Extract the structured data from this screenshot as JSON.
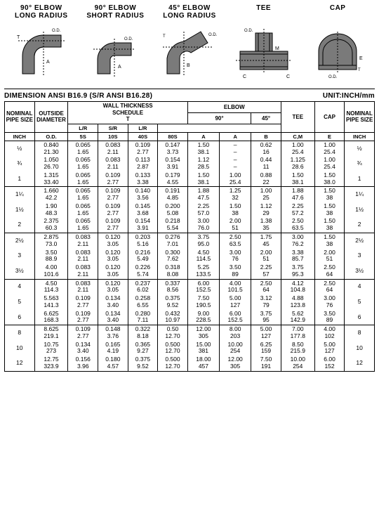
{
  "diagram_titles": [
    "90° ELBOW\nLONG RADIUS",
    "90° ELBOW\nSHORT RADIUS",
    "45° ELBOW\nLONG RADIUS",
    "TEE",
    "CAP"
  ],
  "standard": "DIMENSION ANSI B16.9 (S/R ANSI B16.28)",
  "unit": "UNIT:INCH/mm",
  "colors": {
    "fill": "#7a7a7a",
    "stroke": "#000",
    "bg": "#fff"
  },
  "header": {
    "nominal": "NOMINAL\nPIPE SIZE",
    "od": "OUTSIDE\nDIAMETER",
    "wall": "WALL THICKNESS\nSCHEDULE\nT",
    "elbow": "ELBOW",
    "e90": "90°",
    "e45": "45°",
    "tee": "TEE",
    "cap": "CAP",
    "lr": "L/R",
    "sr": "S/R",
    "inch": "INCH",
    "odc": "O.D.",
    "s5": "5S",
    "s10": "10S",
    "s40": "40S",
    "s80": "80S",
    "a": "A",
    "b": "B",
    "cm": "C,M",
    "e": "E"
  },
  "groups": [
    [
      [
        "½",
        "0.840\n21.30",
        "0.065\n1.65",
        "0.083\n2.11",
        "0.109\n2.77",
        "0.147\n3.73",
        "1.50\n38.1",
        "–\n–",
        "0.62\n16",
        "1.00\n25.4",
        "1.00\n25.4",
        "½"
      ],
      [
        "¾",
        "1.050\n26.70",
        "0.065\n1.65",
        "0.083\n2.11",
        "0.113\n2.87",
        "0.154\n3.91",
        "1.12\n28.5",
        "–\n–",
        "0.44\n11",
        "1.125\n28.6",
        "1.00\n25.4",
        "¾"
      ],
      [
        "1",
        "1.315\n33.40",
        "0.065\n1.65",
        "0.109\n2.77",
        "0.133\n3.38",
        "0.179\n4.55",
        "1.50\n38.1",
        "1.00\n25.4",
        "0.88\n22",
        "1.50\n38.1",
        "1.50\n38.0",
        "1"
      ]
    ],
    [
      [
        "1¼",
        "1.660\n42.2",
        "0.065\n1.65",
        "0.109\n2.77",
        "0.140\n3.56",
        "0.191\n4.85",
        "1.88\n47.5",
        "1.25\n32",
        "1.00\n25",
        "1.88\n47.6",
        "1.50\n38",
        "1¼"
      ],
      [
        "1½",
        "1.90\n48.3",
        "0.065\n1.65",
        "0.109\n2.77",
        "0.145\n3.68",
        "0.200\n5.08",
        "2.25\n57.0",
        "1.50\n38",
        "1.12\n29",
        "2.25\n57.2",
        "1.50\n38",
        "1½"
      ],
      [
        "2",
        "2.375\n60.3",
        "0.065\n1.65",
        "0.109\n2.77",
        "0.154\n3.91",
        "0.218\n5.54",
        "3.00\n76.0",
        "2.00\n51",
        "1.38\n35",
        "2.50\n63.5",
        "1.50\n38",
        "2"
      ]
    ],
    [
      [
        "2½",
        "2.875\n73.0",
        "0.083\n2.11",
        "0.120\n3.05",
        "0.203\n5.16",
        "0.276\n7.01",
        "3.75\n95.0",
        "2.50\n63.5",
        "1.75\n45",
        "3.00\n76.2",
        "1.50\n38",
        "2½"
      ],
      [
        "3",
        "3.50\n88.9",
        "0.083\n2.11",
        "0.120\n3.05",
        "0.216\n5.49",
        "0.300\n7.62",
        "4.50\n114.5",
        "3.00\n76",
        "2.00\n51",
        "3.38\n85.7",
        "2.00\n51",
        "3"
      ],
      [
        "3½",
        "4.00\n101.6",
        "0.083\n2.11",
        "0.120\n3.05",
        "0.226\n5.74",
        "0.318\n8.08",
        "5.25\n133.5",
        "3.50\n89",
        "2.25\n57",
        "3.75\n95.3",
        "2.50\n64",
        "3½"
      ]
    ],
    [
      [
        "4",
        "4.50\n114.3",
        "0.083\n2.11",
        "0.120\n3.05",
        "0.237\n6.02",
        "0.337\n8.56",
        "6.00\n152.5",
        "4.00\n101.5",
        "2.50\n64",
        "4.12\n104.8",
        "2.50\n64",
        "4"
      ],
      [
        "5",
        "5.563\n141.3",
        "0.109\n2.77",
        "0.134\n3.40",
        "0.258\n6.55",
        "0.375\n9.52",
        "7.50\n190.5",
        "5.00\n127",
        "3.12\n79",
        "4.88\n123.8",
        "3.00\n76",
        "5"
      ],
      [
        "6",
        "6.625\n168.3",
        "0.109\n2.77",
        "0.134\n3.40",
        "0.280\n7.11",
        "0.432\n10.97",
        "9.00\n228.5",
        "6.00\n152.5",
        "3.75\n95",
        "5.62\n142.9",
        "3.50\n89",
        "6"
      ]
    ],
    [
      [
        "8",
        "8.625\n219.1",
        "0.109\n2.77",
        "0.148\n3.76",
        "0.322\n8.18",
        "0.50\n12.70",
        "12.00\n305",
        "8.00\n203",
        "5.00\n127",
        "7.00\n177.8",
        "4.00\n102",
        "8"
      ],
      [
        "10",
        "10.75\n273",
        "0.134\n3.40",
        "0.165\n4.19",
        "0.365\n9.27",
        "0.500\n12.70",
        "15.00\n381",
        "10.00\n254",
        "6.25\n159",
        "8.50\n215.9",
        "5.00\n127",
        "10"
      ],
      [
        "12",
        "12.75\n323.9",
        "0.156\n3.96",
        "0.180\n4.57",
        "0.375\n9.52",
        "0.500\n12.70",
        "18.00\n457",
        "12.00\n305",
        "7.50\n191",
        "10.00\n254",
        "6.00\n152",
        "12"
      ]
    ]
  ]
}
